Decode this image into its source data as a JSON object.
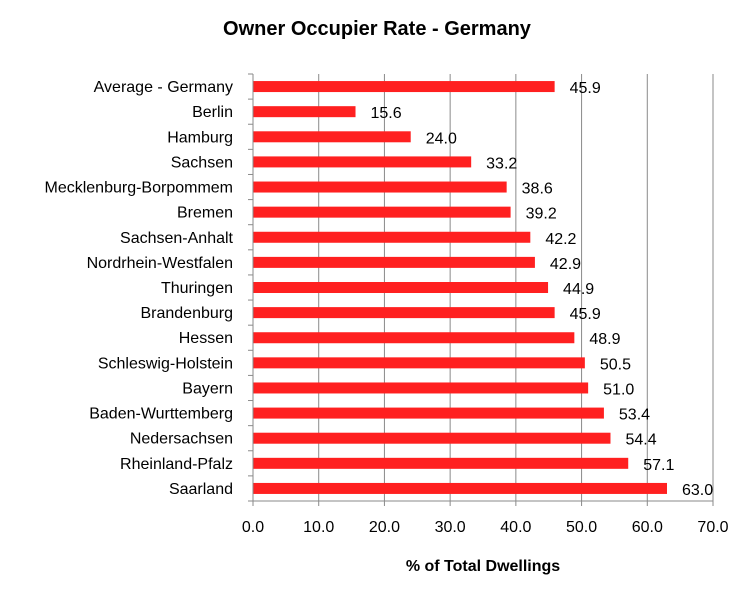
{
  "chart_data": {
    "type": "bar",
    "orientation": "horizontal",
    "title": "Owner Occupier Rate - Germany",
    "xlabel": "% of Total Dwellings",
    "ylabel": "",
    "xlim": [
      0,
      70
    ],
    "x_ticks": [
      "0.0",
      "10.0",
      "20.0",
      "30.0",
      "40.0",
      "50.0",
      "60.0",
      "70.0"
    ],
    "grid": "vertical",
    "bar_color": "#ff2020",
    "categories": [
      "Average - Germany",
      "Berlin",
      "Hamburg",
      "Sachsen",
      "Mecklenburg-Borpommem",
      "Bremen",
      "Sachsen-Anhalt",
      "Nordrhein-Westfalen",
      "Thuringen",
      "Brandenburg",
      "Hessen",
      "Schleswig-Holstein",
      "Bayern",
      "Baden-Wurttemberg",
      "Nedersachsen",
      "Rheinland-Pfalz",
      "Saarland"
    ],
    "values": [
      45.9,
      15.6,
      24.0,
      33.2,
      38.6,
      39.2,
      42.2,
      42.9,
      44.9,
      45.9,
      48.9,
      50.5,
      51.0,
      53.4,
      54.4,
      57.1,
      63.0
    ],
    "value_labels": [
      "45.9",
      "15.6",
      "24.0",
      "33.2",
      "38.6",
      "39.2",
      "42.2",
      "42.9",
      "44.9",
      "45.9",
      "48.9",
      "50.5",
      "51.0",
      "53.4",
      "54.4",
      "57.1",
      "63.0"
    ]
  }
}
